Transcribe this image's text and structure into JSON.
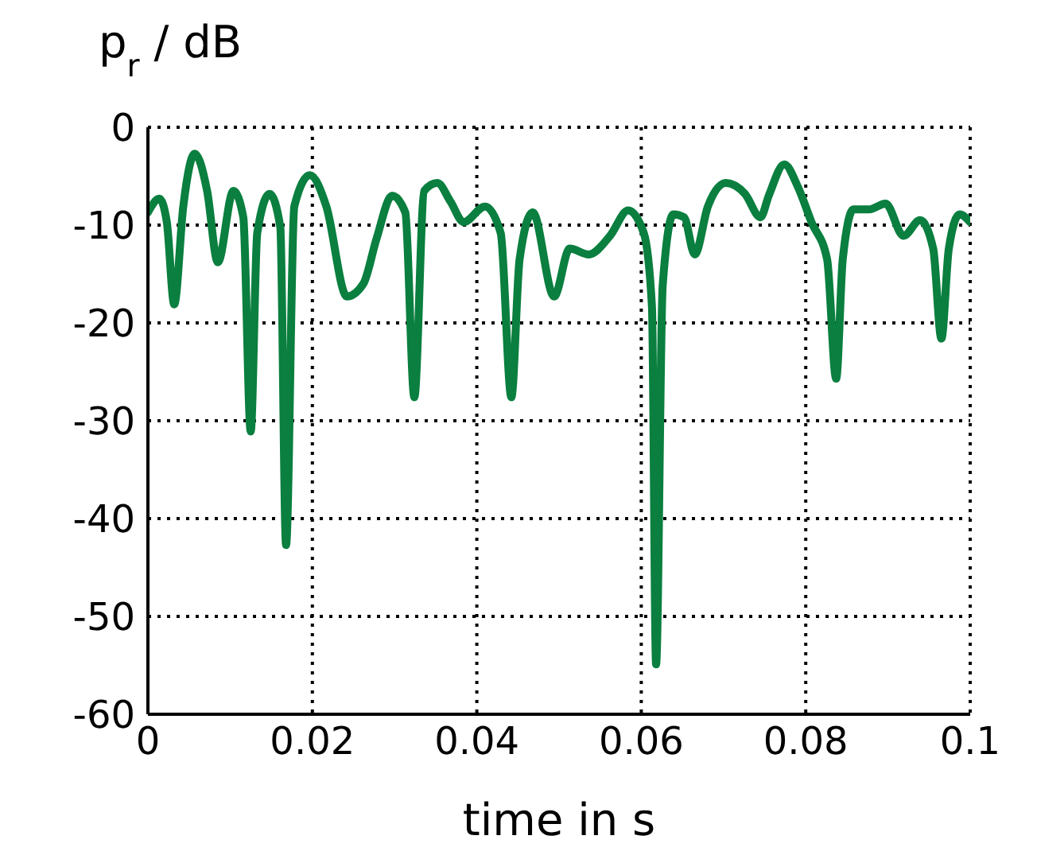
{
  "chart_data": {
    "type": "line",
    "ylabel": "p$_{r}$ / dB",
    "xlabel": "time in s",
    "xlim": [
      0,
      0.1
    ],
    "xticks": [
      0,
      0.02,
      0.04,
      0.06,
      0.08,
      0.1
    ],
    "ylim": [
      -60,
      0
    ],
    "yticks": [
      0,
      -10,
      -20,
      -30,
      -40,
      -50,
      -60
    ],
    "grid": true,
    "legend": false,
    "marker": "none",
    "line_style": "solid",
    "series": [
      {
        "color": "#0a7f3f",
        "x": [
          0,
          0.0014,
          0.0023,
          0.0032,
          0.0043,
          0.0057,
          0.0072,
          0.0085,
          0.0104,
          0.0116,
          0.0125,
          0.0133,
          0.0148,
          0.0161,
          0.0168,
          0.0178,
          0.0197,
          0.0217,
          0.0242,
          0.0262,
          0.0278,
          0.0297,
          0.0313,
          0.0324,
          0.0336,
          0.0352,
          0.0368,
          0.0384,
          0.041,
          0.0429,
          0.0442,
          0.0452,
          0.0468,
          0.0494,
          0.0513,
          0.0536,
          0.0562,
          0.0584,
          0.0603,
          0.0613,
          0.0618,
          0.0626,
          0.0639,
          0.0652,
          0.0665,
          0.0681,
          0.0703,
          0.0726,
          0.0745,
          0.0755,
          0.0774,
          0.079,
          0.0807,
          0.0826,
          0.0837,
          0.0845,
          0.0858,
          0.0877,
          0.0897,
          0.0919,
          0.0939,
          0.0955,
          0.0965,
          0.0974,
          0.0987,
          0.1
        ],
        "values": [
          -8.7,
          -7.3,
          -9.7,
          -18.1,
          -8.1,
          -2.7,
          -6.5,
          -13.8,
          -6.5,
          -9.2,
          -31.1,
          -10.8,
          -6.8,
          -10.2,
          -42.7,
          -8.1,
          -4.9,
          -8.1,
          -17.3,
          -16,
          -11.4,
          -7,
          -8.7,
          -27.6,
          -6.5,
          -5.7,
          -7.6,
          -9.7,
          -8.1,
          -10.8,
          -27.6,
          -13.5,
          -8.7,
          -17.3,
          -12.4,
          -13,
          -11.1,
          -8.5,
          -10.8,
          -18.4,
          -54.9,
          -16.2,
          -8.9,
          -9.2,
          -13,
          -8.1,
          -5.7,
          -6.8,
          -9.2,
          -7,
          -3.8,
          -6,
          -9.7,
          -13.5,
          -25.7,
          -13.5,
          -8.4,
          -8.4,
          -7.8,
          -11.1,
          -9.5,
          -12.4,
          -21.6,
          -12.4,
          -8.9,
          -9.7
        ]
      }
    ]
  }
}
